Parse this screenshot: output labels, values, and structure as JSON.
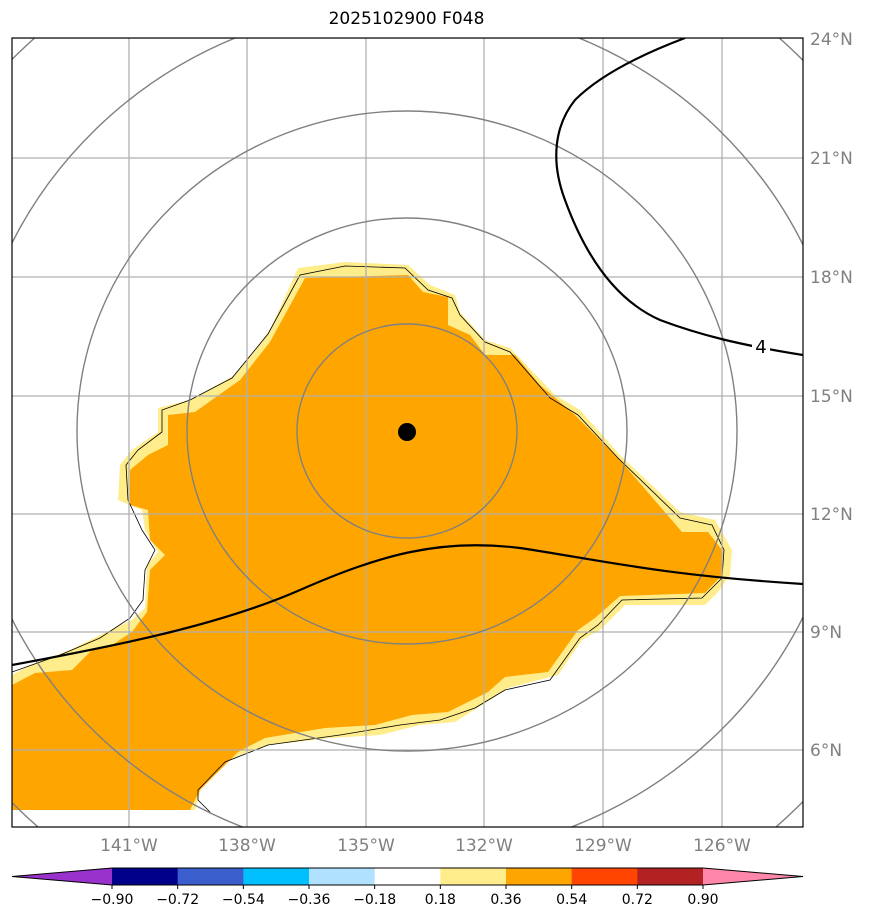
{
  "title": "2025102900 F048",
  "lat_labels": [
    "24°N",
    "21°N",
    "18°N",
    "15°N",
    "12°N",
    "9°N",
    "6°N"
  ],
  "lon_labels": [
    "141°W",
    "138°W",
    "135°W",
    "132°W",
    "129°W",
    "126°W"
  ],
  "contour_label": "4",
  "colorbar": {
    "colors": [
      "#9932cc",
      "#00008b",
      "#3a5fcd",
      "#00bfff",
      "#b0e2ff",
      "#ffffff",
      "#ffec8b",
      "#ffa500",
      "#ff4500",
      "#b22222",
      "#ff88aa"
    ],
    "ticks": [
      "−0.90",
      "−0.72",
      "−0.54",
      "−0.36",
      "−0.18",
      "0.18",
      "0.36",
      "0.54",
      "0.72",
      "0.90"
    ]
  },
  "colors": {
    "fill_main": "#ffa500",
    "fill_edge": "#ffec8b",
    "grid": "#b0b0b0",
    "range_rings": "#808080",
    "center_marker": "#000000"
  }
}
